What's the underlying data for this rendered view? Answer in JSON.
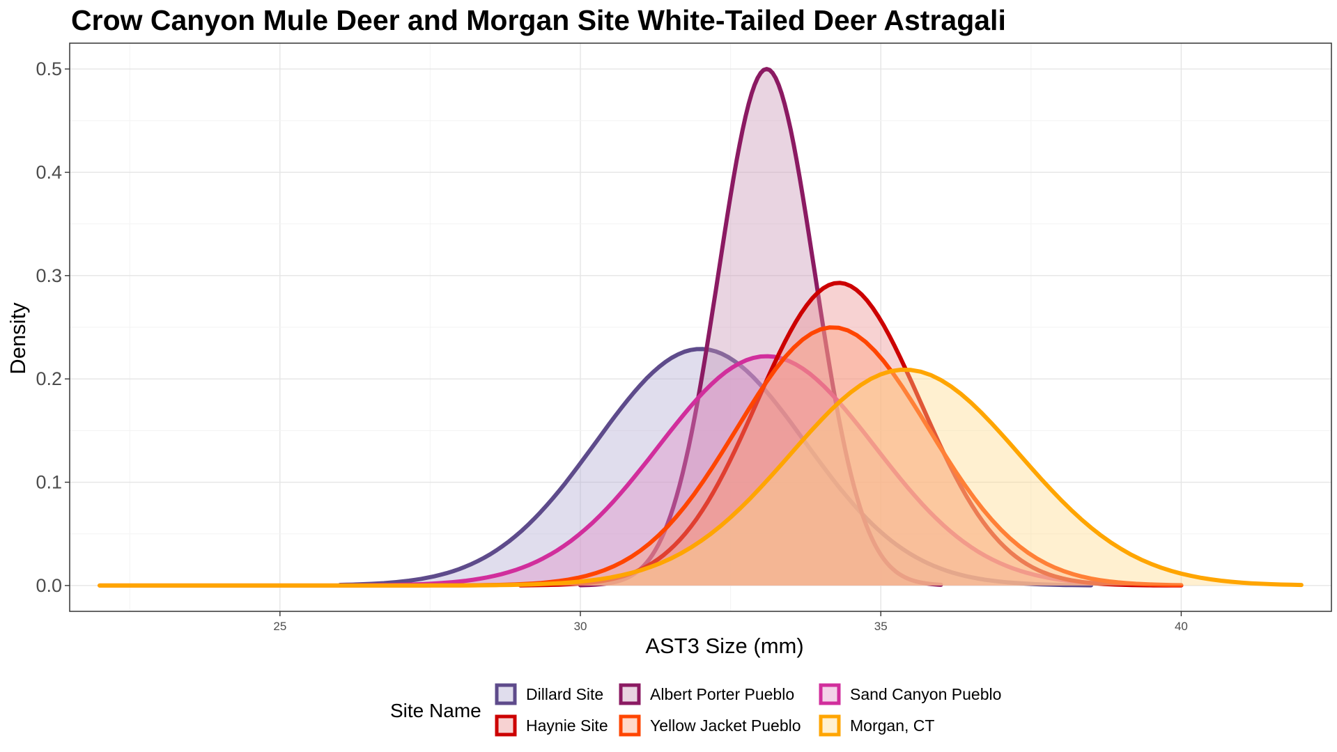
{
  "chart_data": {
    "type": "area",
    "title": "Crow Canyon Mule Deer and Morgan Site White-Tailed Deer Astragali",
    "xlabel": "AST3 Size (mm)",
    "ylabel": "Density",
    "xlim": [
      21.5,
      42.5
    ],
    "ylim": [
      -0.025,
      0.525
    ],
    "x_ticks": [
      25,
      30,
      35,
      40
    ],
    "y_ticks": [
      0.0,
      0.1,
      0.2,
      0.3,
      0.4,
      0.5
    ],
    "x_tick_labels": [
      "25",
      "30",
      "35",
      "40"
    ],
    "y_tick_labels": [
      "0.0",
      "0.1",
      "0.2",
      "0.3",
      "0.4",
      "0.5"
    ],
    "grid": true,
    "legend": {
      "title": "Site Name",
      "placement": "bottom",
      "rows": [
        [
          "Dillard Site",
          "Albert Porter Pueblo",
          "Sand Canyon Pueblo"
        ],
        [
          "Haynie Site",
          "Yellow Jacket Pueblo",
          "Morgan, CT"
        ]
      ]
    },
    "series": [
      {
        "name": "Dillard Site",
        "color": "#5e4b8b",
        "fill": "#b2abd2",
        "distribution": "normal",
        "mean": 32.0,
        "sd": 1.74,
        "peak_density": 0.229,
        "x_range": [
          26.0,
          38.5
        ]
      },
      {
        "name": "Albert Porter Pueblo",
        "color": "#8b1a62",
        "fill": "#c994b4",
        "distribution": "normal",
        "mean": 33.1,
        "sd": 0.8,
        "peak_density": 0.5,
        "x_range": [
          30.0,
          36.0
        ]
      },
      {
        "name": "Sand Canyon Pueblo",
        "color": "#d12e9c",
        "fill": "#e08ec6",
        "distribution": "normal",
        "mean": 33.1,
        "sd": 1.8,
        "peak_density": 0.222,
        "x_range": [
          26.0,
          40.0
        ]
      },
      {
        "name": "Haynie Site",
        "color": "#cc0000",
        "fill": "#ec8e8e",
        "distribution": "normal",
        "mean": 34.3,
        "sd": 1.36,
        "peak_density": 0.293,
        "x_range": [
          29.0,
          40.0
        ]
      },
      {
        "name": "Yellow Jacket Pueblo",
        "color": "#ff4500",
        "fill": "#ff9d78",
        "distribution": "normal",
        "mean": 34.2,
        "sd": 1.6,
        "peak_density": 0.25,
        "x_range": [
          22.0,
          40.0
        ]
      },
      {
        "name": "Morgan, CT",
        "color": "#ffa500",
        "fill": "#ffd98a",
        "distribution": "normal",
        "mean": 35.4,
        "sd": 1.91,
        "peak_density": 0.209,
        "x_range": [
          22.0,
          42.0
        ]
      }
    ]
  }
}
